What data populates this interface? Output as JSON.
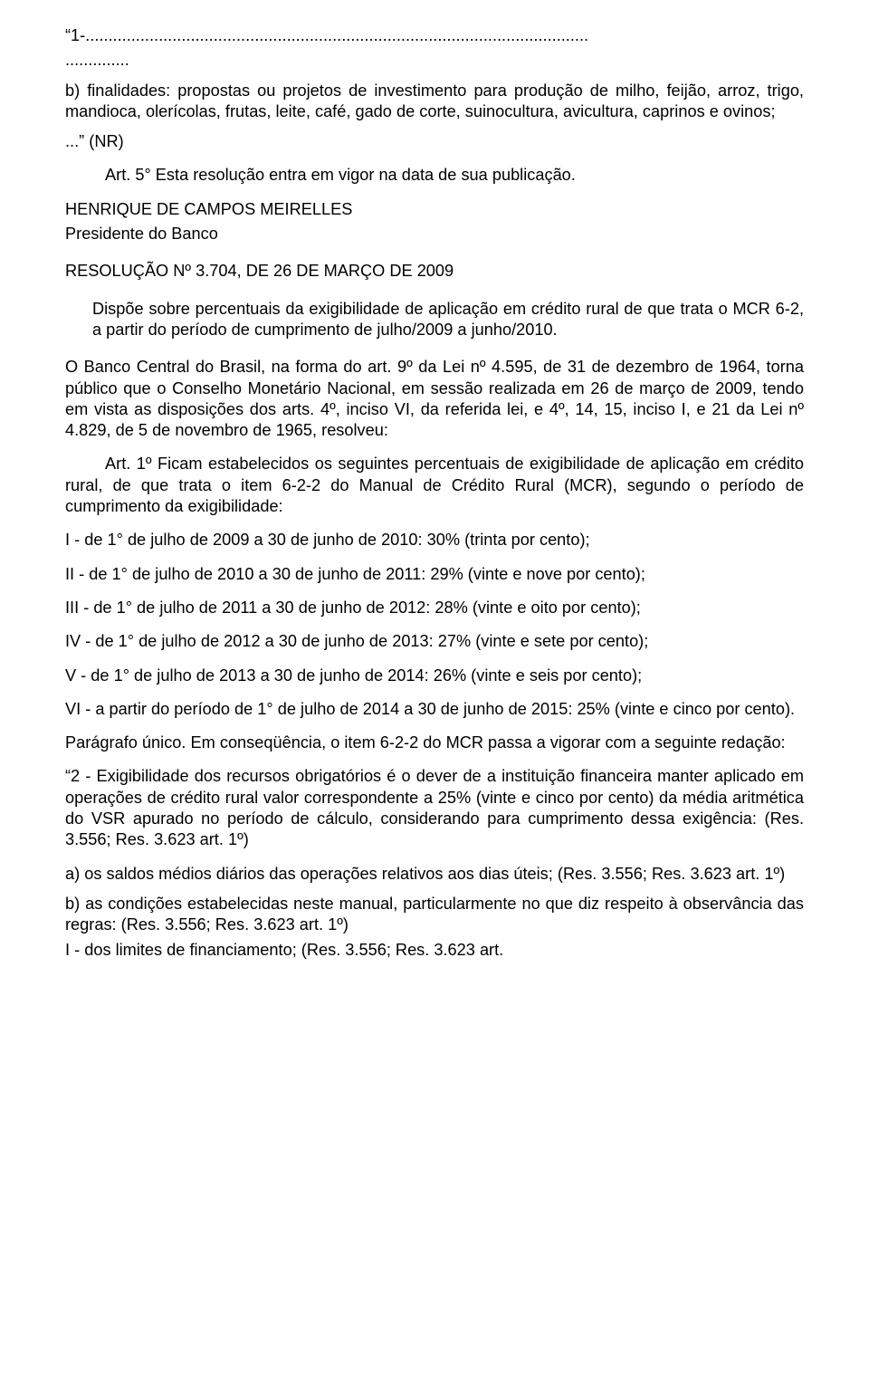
{
  "l01": "“1-..............................................................................................................",
  "l02": "..............",
  "l03": "b) finalidades: propostas ou projetos de investimento para produção de milho, feijão, arroz, trigo, mandioca, olerícolas, frutas, leite, café, gado de corte, suinocultura, avicultura, caprinos e ovinos;",
  "l04": "...” (NR)",
  "l05": "Art. 5° Esta resolução entra em vigor na data de sua publicação.",
  "l06": "HENRIQUE DE CAMPOS MEIRELLES",
  "l07": "Presidente do Banco",
  "l08": "RESOLUÇÃO Nº 3.704, DE 26 DE MARÇO DE 2009",
  "l09": "Dispõe sobre percentuais da exigibilidade de aplicação em crédito rural de que trata o MCR 6-2, a partir do período de cumprimento de julho/2009 a junho/2010.",
  "l10": "O Banco Central do Brasil, na forma do art. 9º da Lei nº 4.595, de 31 de dezembro de 1964, torna público que o Conselho Monetário Nacional, em sessão realizada em 26 de março de 2009, tendo em vista as disposições dos arts. 4º, inciso VI, da referida lei, e 4º, 14, 15, inciso I, e 21 da Lei nº 4.829, de 5 de novembro de 1965, resolveu:",
  "l11": "Art. 1º Ficam estabelecidos os seguintes percentuais de exigibilidade de aplicação em crédito rural, de que trata o item 6-2-2 do Manual de Crédito Rural (MCR), segundo o período de cumprimento da exigibilidade:",
  "l12": "I - de 1° de julho de 2009 a 30 de junho de 2010: 30% (trinta por cento);",
  "l13": "II - de 1° de julho de 2010 a 30 de junho de 2011: 29% (vinte e nove por cento);",
  "l14": "III - de 1° de julho de 2011 a 30 de junho de 2012: 28% (vinte e oito por cento);",
  "l15": "IV - de 1° de julho de 2012 a 30 de junho de 2013: 27% (vinte e sete por cento);",
  "l16": "V - de 1° de julho de 2013 a 30 de junho de 2014: 26% (vinte e seis por cento);",
  "l17": "VI - a partir do período de 1° de julho de 2014 a 30 de junho de 2015: 25% (vinte e cinco por cento).",
  "l18": "Parágrafo único. Em conseqüência, o item 6-2-2 do MCR passa a vigorar com a seguinte redação:",
  "l19": "“2 - Exigibilidade dos recursos obrigatórios é o dever de a instituição financeira manter aplicado em operações de crédito rural valor correspondente a 25% (vinte e cinco por cento) da média aritmética do VSR apurado no período de cálculo, considerando para cumprimento dessa exigência: (Res. 3.556; Res. 3.623 art. 1º)",
  "l20": "a) os saldos médios diários das operações relativos aos dias úteis; (Res. 3.556; Res. 3.623 art. 1º)",
  "l21": "b) as condições estabelecidas neste manual, particularmente no que diz respeito à observância das regras: (Res. 3.556; Res. 3.623 art. 1º)",
  "l22": "I - dos limites de financiamento; (Res. 3.556; Res. 3.623 art."
}
